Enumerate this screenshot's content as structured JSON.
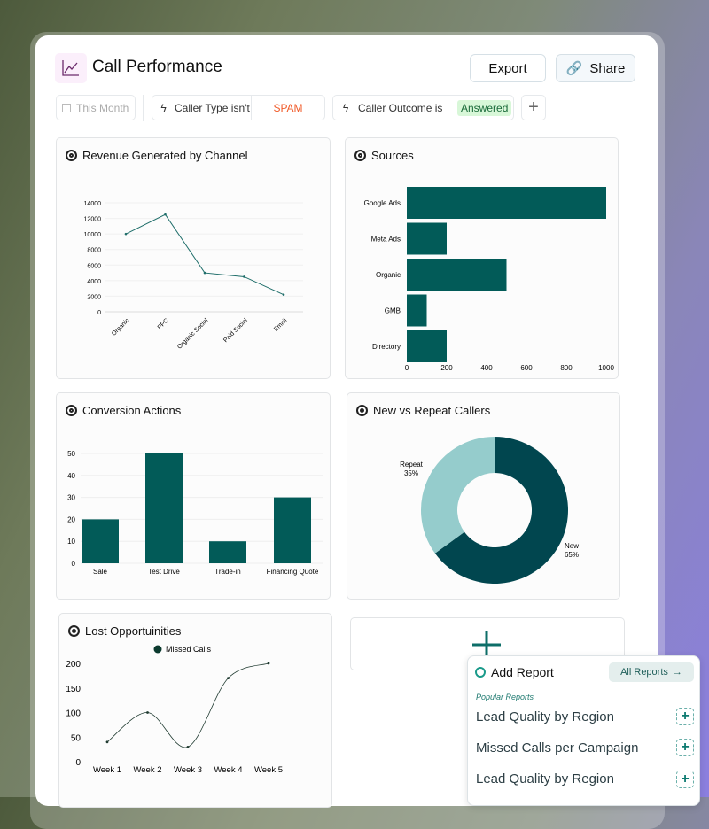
{
  "header": {
    "title": "Call Performance",
    "export_label": "Export",
    "share_label": "Share"
  },
  "filters": {
    "date": "This Month",
    "f1_label": "Caller Type isn't",
    "f1_value": "SPAM",
    "f2_label": "Caller Outcome is",
    "f2_value": "Answered"
  },
  "colors": {
    "bar": "#025b58",
    "line": "#1f6e6a",
    "donut_dark": "#01464f",
    "donut_light": "#95cccc",
    "spam": "#f05a28",
    "answered_bg": "#d8f7d8"
  },
  "chart_data": [
    {
      "type": "line",
      "title": "Revenue Generated by Channel",
      "categories": [
        "Organic",
        "PPC",
        "Organic Social",
        "Paid Social",
        "Email"
      ],
      "values": [
        10000,
        12500,
        5000,
        4500,
        2200
      ],
      "ylim": [
        0,
        14000
      ],
      "yticks": [
        "0",
        "2000",
        "4000",
        "6000",
        "8000",
        "10000",
        "12000",
        "14000"
      ],
      "grid": true
    },
    {
      "type": "bar",
      "orientation": "horizontal",
      "title": "Sources",
      "categories": [
        "Google Ads",
        "Meta Ads",
        "Organic",
        "GMB",
        "Directory"
      ],
      "values": [
        1000,
        200,
        500,
        100,
        200
      ],
      "xlim": [
        0,
        1000
      ],
      "xticks": [
        "0",
        "200",
        "400",
        "600",
        "800",
        "1000"
      ]
    },
    {
      "type": "bar",
      "title": "Conversion Actions",
      "categories": [
        "Sale",
        "Test Drive",
        "Trade-in",
        "Financing Quote"
      ],
      "values": [
        20,
        50,
        10,
        30
      ],
      "ylim": [
        0,
        50
      ],
      "yticks": [
        "0",
        "10",
        "20",
        "30",
        "40",
        "50"
      ],
      "grid": true
    },
    {
      "type": "pie",
      "donut": true,
      "title": "New vs Repeat Callers",
      "labels": [
        "New",
        "Repeat"
      ],
      "values": [
        65,
        35
      ],
      "value_labels": [
        "65%",
        "35%"
      ]
    },
    {
      "type": "line",
      "smooth": true,
      "title": "Lost Opportuinities",
      "legend": "top",
      "series": [
        {
          "name": "Missed Calls",
          "values": [
            40,
            100,
            30,
            170,
            200
          ]
        }
      ],
      "categories": [
        "Week 1",
        "Week 2",
        "Week 3",
        "Week 4",
        "Week 5"
      ],
      "ylim": [
        0,
        200
      ],
      "yticks": [
        "0",
        "50",
        "100",
        "150",
        "200"
      ]
    }
  ],
  "popup": {
    "title": "Add Report",
    "all_reports": "All Reports",
    "section": "Popular Reports",
    "items": [
      "Lead Quality by Region",
      "Missed Calls per Campaign",
      "Lead Quality by Region"
    ]
  }
}
